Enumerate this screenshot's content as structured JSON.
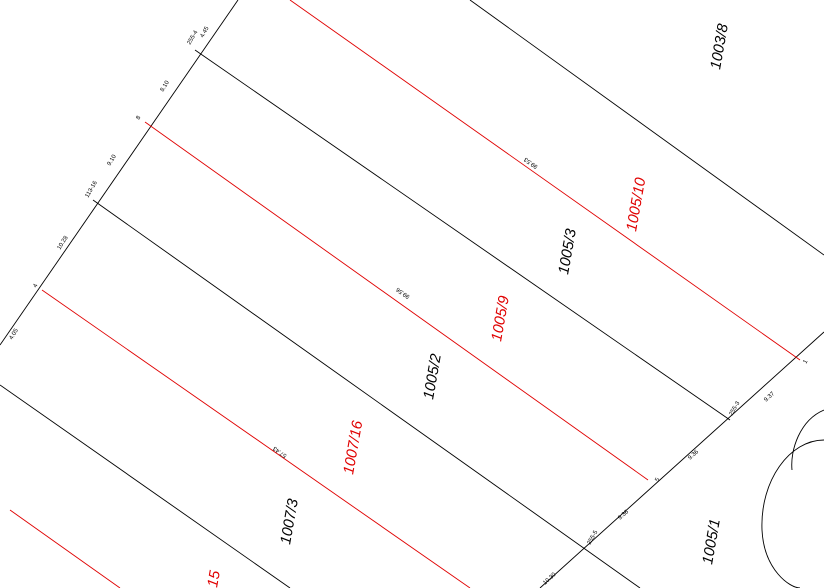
{
  "parcels": {
    "black": [
      "1003/8",
      "1005/3",
      "1005/2",
      "1007/3",
      "1005/1"
    ],
    "red": [
      "1005/10",
      "1005/9",
      "1007/16",
      "15"
    ]
  },
  "points": [
    "255-4",
    "8",
    "113-16",
    "4",
    "255-3",
    "1",
    "5",
    "255-5"
  ],
  "distances": [
    "4.45",
    "8.10",
    "9.10",
    "10.28",
    "4.05",
    "9.37",
    "9.36",
    "9.36",
    "10.30"
  ],
  "lengths": [
    "99.53",
    "99.56",
    "57.43"
  ]
}
